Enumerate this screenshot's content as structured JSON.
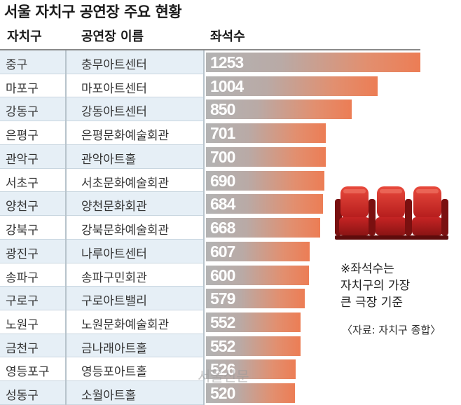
{
  "title": "서울 자치구 공연장 주요 현황",
  "headers": {
    "district": "자치구",
    "venue": "공연장 이름",
    "seats": "좌석수"
  },
  "chart_data": {
    "type": "bar",
    "orientation": "horizontal",
    "title": "서울 자치구 공연장 주요 현황",
    "xlim": [
      0,
      1253
    ],
    "rows": [
      {
        "district": "중구",
        "venue": "충무아트센터",
        "seats": 1253
      },
      {
        "district": "마포구",
        "venue": "마포아트센터",
        "seats": 1004
      },
      {
        "district": "강동구",
        "venue": "강동아트센터",
        "seats": 850
      },
      {
        "district": "은평구",
        "venue": "은평문화예술회관",
        "seats": 701
      },
      {
        "district": "관악구",
        "venue": "관악아트홀",
        "seats": 700
      },
      {
        "district": "서초구",
        "venue": "서초문화예술회관",
        "seats": 690
      },
      {
        "district": "양천구",
        "venue": "양천문화회관",
        "seats": 684
      },
      {
        "district": "강북구",
        "venue": "강북문화예술회관",
        "seats": 668
      },
      {
        "district": "광진구",
        "venue": "나루아트센터",
        "seats": 607
      },
      {
        "district": "송파구",
        "venue": "송파구민회관",
        "seats": 600
      },
      {
        "district": "구로구",
        "venue": "구로아트밸리",
        "seats": 579
      },
      {
        "district": "노원구",
        "venue": "노원문화예술회관",
        "seats": 552
      },
      {
        "district": "금천구",
        "venue": "금나래아트홀",
        "seats": 552
      },
      {
        "district": "영등포구",
        "venue": "영등포아트홀",
        "seats": 526
      },
      {
        "district": "성동구",
        "venue": "소월아트홀",
        "seats": 520
      }
    ]
  },
  "note": [
    "※좌석수는",
    "자치구의 가장",
    "큰 극장 기준"
  ],
  "source": "〈자료: 자치구 종합〉",
  "watermark": "서울신문",
  "colors": {
    "bar_start": "#b3b3b3",
    "bar_end": "#ec7d55",
    "row_alt": "#e6eff6",
    "seat_red": "#d42a2a"
  },
  "icon": "theater-seats-icon"
}
